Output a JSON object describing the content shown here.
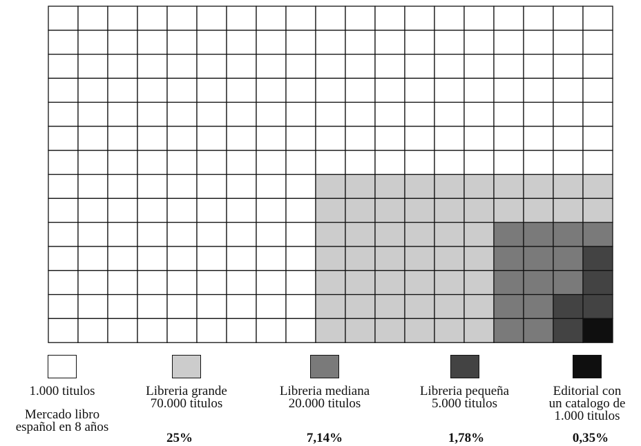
{
  "chart_data": {
    "type": "heatmap",
    "grid": {
      "columns": 19,
      "rows": 14,
      "total_cells": 266
    },
    "cell_fills": {
      "white": "#ffffff",
      "libreria_grande": "#cccccc",
      "libreria_mediana": "#7a7a7a",
      "libreria_pequena": "#434343",
      "editorial": "#0f0f0f"
    },
    "blocks": [
      {
        "fill": "libreria_grande",
        "col_start": 10,
        "col_end": 19,
        "row_start": 8,
        "row_end": 14
      },
      {
        "fill": "libreria_mediana",
        "col_start": 16,
        "col_end": 19,
        "row_start": 10,
        "row_end": 14
      },
      {
        "fill": "libreria_pequena",
        "cells": [
          [
            19,
            11
          ],
          [
            19,
            12
          ],
          [
            18,
            13
          ],
          [
            19,
            13
          ],
          [
            18,
            14
          ]
        ]
      },
      {
        "fill": "editorial",
        "cells": [
          [
            19,
            14
          ]
        ]
      }
    ],
    "legend": [
      {
        "swatch": "#ffffff",
        "label": "1.000 titulos",
        "sub": "Mercado libro\nespañol en 8 años",
        "pct": "25%"
      },
      {
        "swatch": "#cccccc",
        "label": "Libreria grande\n70.000 titulos",
        "sub": "",
        "pct": "7,14%"
      },
      {
        "swatch": "#7a7a7a",
        "label": "Libreria mediana\n20.000 titulos",
        "sub": "",
        "pct": "1,78%"
      },
      {
        "swatch": "#434343",
        "label": "Libreria pequeña\n5.000 titulos",
        "sub": "",
        "pct": "0,35%"
      },
      {
        "swatch": "#0f0f0f",
        "label": "Editorial con\nun catalogo de\n1.000 titulos",
        "sub": "",
        "pct": ""
      }
    ]
  }
}
